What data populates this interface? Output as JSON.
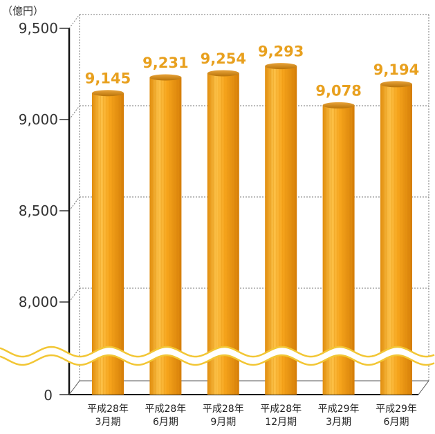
{
  "chart_data": {
    "type": "bar",
    "unit_label": "（億円）",
    "categories": [
      [
        "平成28年",
        "3月期"
      ],
      [
        "平成28年",
        "6月期"
      ],
      [
        "平成28年",
        "9月期"
      ],
      [
        "平成28年",
        "12月期"
      ],
      [
        "平成29年",
        "3月期"
      ],
      [
        "平成29年",
        "6月期"
      ]
    ],
    "values": [
      9145,
      9231,
      9254,
      9293,
      9078,
      9194
    ],
    "value_labels": [
      "9,145",
      "9,231",
      "9,254",
      "9,293",
      "9,078",
      "9,194"
    ],
    "y_ticks": [
      {
        "value": 9500,
        "label": "9,500"
      },
      {
        "value": 9000,
        "label": "9,000"
      },
      {
        "value": 8500,
        "label": "8,500"
      },
      {
        "value": 8000,
        "label": "8,000"
      }
    ],
    "zero_label": "0",
    "ylim": [
      7700,
      9500
    ],
    "axis_break": true,
    "grid": true,
    "colors": {
      "bar_main": "#f7a51c",
      "bar_light": "#fcc24a",
      "bar_dark": "#d47d08",
      "bar_top": "#c9830d",
      "value_text": "#e8a01e",
      "break_wave": "#f2c634",
      "grid": "#777777"
    }
  }
}
